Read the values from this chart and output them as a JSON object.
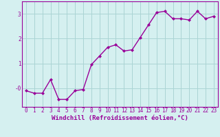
{
  "x": [
    0,
    1,
    2,
    3,
    4,
    5,
    6,
    7,
    8,
    9,
    10,
    11,
    12,
    13,
    14,
    15,
    16,
    17,
    18,
    19,
    20,
    21,
    22,
    23
  ],
  "y": [
    -0.1,
    -0.2,
    -0.2,
    0.35,
    -0.45,
    -0.45,
    -0.1,
    -0.05,
    0.95,
    1.3,
    1.65,
    1.75,
    1.5,
    1.55,
    2.05,
    2.55,
    3.05,
    3.1,
    2.8,
    2.8,
    2.75,
    3.1,
    2.8,
    2.9
  ],
  "line_color": "#990099",
  "marker": "D",
  "marker_size": 2.0,
  "bg_color": "#d5f0f0",
  "grid_color": "#aad4d4",
  "xlabel": "Windchill (Refroidissement éolien,°C)",
  "ylabel": "",
  "title": "",
  "xlim": [
    -0.5,
    23.5
  ],
  "ylim": [
    -0.75,
    3.5
  ],
  "yticks": [
    0,
    1,
    2,
    3
  ],
  "ytick_labels": [
    "-0",
    "1",
    "2",
    "3"
  ],
  "xticks": [
    0,
    1,
    2,
    3,
    4,
    5,
    6,
    7,
    8,
    9,
    10,
    11,
    12,
    13,
    14,
    15,
    16,
    17,
    18,
    19,
    20,
    21,
    22,
    23
  ],
  "xlabel_fontsize": 6.5,
  "tick_fontsize": 5.5,
  "line_width": 1.0
}
